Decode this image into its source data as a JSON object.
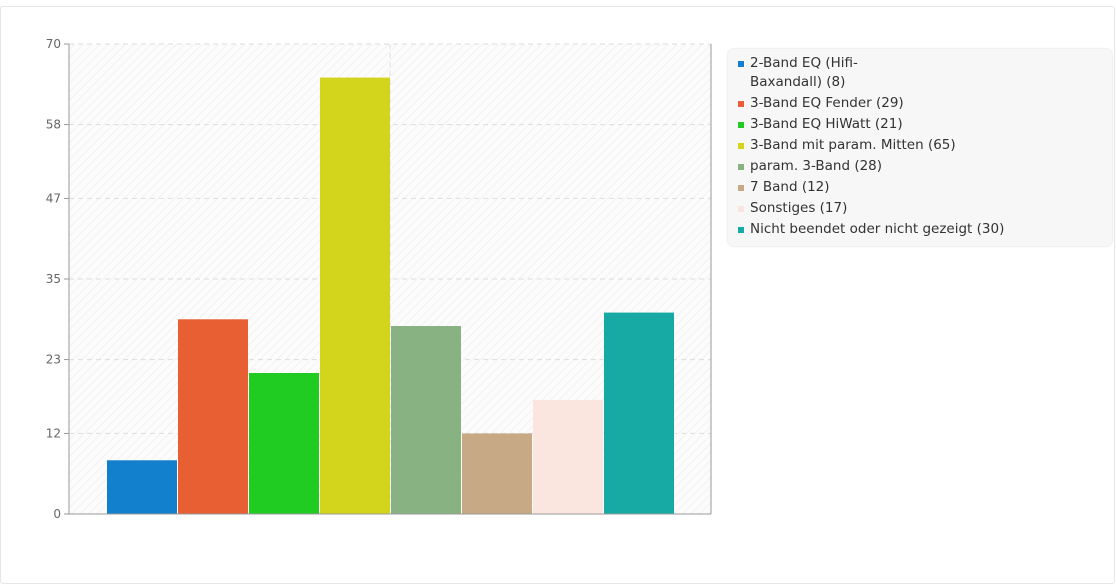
{
  "chart_data": {
    "type": "bar",
    "title": "",
    "xlabel": "",
    "ylabel": "",
    "ylim": [
      0,
      70
    ],
    "yticks": [
      "0",
      "12",
      "23",
      "35",
      "47",
      "58",
      "70"
    ],
    "grid": true,
    "legend_position": "right",
    "categories": [
      "2-Band EQ (Hifi-Baxandall)",
      "3-Band EQ Fender",
      "3-Band EQ HiWatt",
      "3-Band mit param. Mitten",
      "param. 3-Band",
      "7 Band",
      "Sonstiges",
      "Nicht beendet oder nicht gezeigt"
    ],
    "values": [
      8,
      29,
      21,
      65,
      28,
      12,
      17,
      30
    ],
    "colors": [
      "#1380cd",
      "#e85f33",
      "#20cc22",
      "#d2d51b",
      "#88b282",
      "#c7aa85",
      "#fbe6df",
      "#17a9a4"
    ],
    "legend": [
      "2-Band EQ (Hifi-Baxandall) (8)",
      "3-Band EQ Fender (29)",
      "3-Band EQ HiWatt (21)",
      "3-Band mit param. Mitten (65)",
      "param. 3-Band (28)",
      "7 Band (12)",
      "Sonstiges (17)",
      "Nicht beendet oder nicht gezeigt (30)"
    ]
  }
}
